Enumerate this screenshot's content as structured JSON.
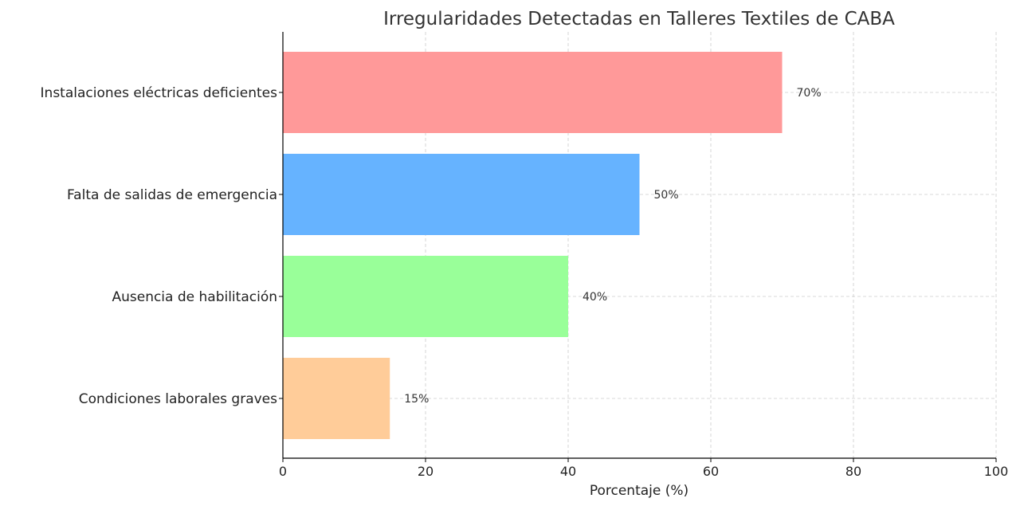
{
  "chart_data": {
    "type": "bar",
    "orientation": "horizontal",
    "title": "Irregularidades Detectadas en Talleres Textiles de CABA",
    "xlabel": "Porcentaje (%)",
    "ylabel": "",
    "xlim": [
      0,
      100
    ],
    "xticks": [
      "0",
      "20",
      "40",
      "60",
      "80",
      "100"
    ],
    "grid": true,
    "categories": [
      "Instalaciones eléctricas deficientes",
      "Falta de salidas de emergencia",
      "Ausencia de habilitación",
      "Condiciones laborales graves"
    ],
    "values": [
      70,
      50,
      40,
      15
    ],
    "data_labels": [
      "70%",
      "50%",
      "40%",
      "15%"
    ],
    "colors": [
      "#ff9999",
      "#66b3ff",
      "#99ff99",
      "#ffcc99"
    ]
  }
}
